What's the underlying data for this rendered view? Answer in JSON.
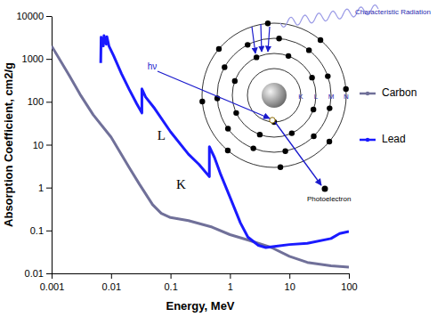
{
  "chart_data": {
    "type": "line",
    "x_label": "Energy, MeV",
    "y_label": "Absorption Coefficient, cm2/g",
    "log": true,
    "grid": false,
    "legend": "right",
    "xlim": [
      0.001,
      100
    ],
    "xticks": [
      0.001,
      0.01,
      0.1,
      1,
      10,
      100
    ],
    "ylim": [
      0.01,
      10000
    ],
    "yticks": [
      0.01,
      0.1,
      1,
      10,
      100,
      1000,
      10000
    ],
    "series": [
      {
        "name": "Carbon",
        "color": "#707099",
        "x": [
          0.001,
          0.002,
          0.003,
          0.005,
          0.01,
          0.02,
          0.03,
          0.05,
          0.07,
          0.1,
          0.2,
          0.5,
          1,
          2,
          5,
          10,
          20,
          50,
          100
        ],
        "values": [
          2000,
          400,
          150,
          50,
          15,
          3,
          1.2,
          0.4,
          0.25,
          0.2,
          0.17,
          0.12,
          0.08,
          0.06,
          0.04,
          0.025,
          0.018,
          0.015,
          0.014
        ]
      },
      {
        "name": "Lead",
        "color": "#1a1aff",
        "x": [
          0.0067,
          0.0068,
          0.0074,
          0.0076,
          0.0083,
          0.0085,
          0.0092,
          0.011,
          0.015,
          0.02,
          0.027,
          0.033,
          0.033,
          0.038,
          0.054,
          0.1,
          0.2,
          0.3,
          0.45,
          0.45,
          0.55,
          0.7,
          1,
          1.5,
          2,
          3,
          4,
          6,
          10,
          20,
          50,
          70,
          100
        ],
        "values": [
          800,
          3200,
          2000,
          3500,
          2200,
          3300,
          2000,
          1200,
          450,
          200,
          90,
          55,
          200,
          130,
          70,
          20,
          6,
          3.5,
          1.8,
          9,
          5,
          2,
          0.6,
          0.15,
          0.07,
          0.045,
          0.04,
          0.043,
          0.047,
          0.05,
          0.065,
          0.085,
          0.095
        ]
      }
    ],
    "annotations": [
      {
        "text": "L",
        "x": 0.07,
        "y": 15
      },
      {
        "text": "K",
        "x": 0.15,
        "y": 1.1
      }
    ],
    "inset": {
      "photon": "hν",
      "shells": [
        "K",
        "L",
        "M",
        "N"
      ],
      "electron": "Photoelectron",
      "radiation": "Characteristic Radiation"
    }
  }
}
